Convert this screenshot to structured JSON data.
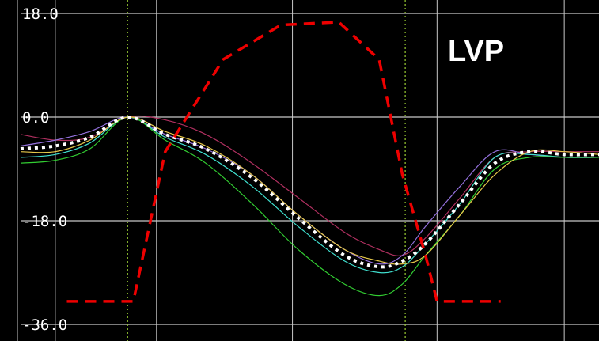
{
  "chart_data": {
    "type": "line",
    "annotation_label": "LVP",
    "y_tick_labels": [
      "18.0",
      "0.0",
      "-18.0",
      "-36.0"
    ],
    "y_ticks": [
      18,
      0,
      -18,
      -36
    ],
    "ylim": [
      -36,
      18
    ],
    "xlim": [
      0,
      1
    ],
    "grid": true,
    "event_markers_x": [
      0.185,
      0.665
    ],
    "colors": {
      "background": "#000000",
      "grid": "#c8c8c8",
      "marker_line": "#9acd32",
      "mean_trace": "#ffffff",
      "lvp_trace": "#ee0000",
      "axis_text": "#ffffff"
    },
    "series": [
      {
        "color": "#b03060",
        "style": "thin",
        "x": [
          0,
          0.06,
          0.12,
          0.185,
          0.25,
          0.32,
          0.4,
          0.48,
          0.56,
          0.62,
          0.66,
          0.7,
          0.76,
          0.82,
          0.88,
          0.94,
          1
        ],
        "y": [
          -3,
          -4,
          -3.5,
          0,
          -0.5,
          -3,
          -8,
          -14,
          -20,
          -23,
          -24,
          -21,
          -14,
          -7,
          -6,
          -6,
          -6
        ]
      },
      {
        "color": "#9370db",
        "style": "thin",
        "x": [
          0,
          0.06,
          0.12,
          0.185,
          0.25,
          0.32,
          0.4,
          0.48,
          0.56,
          0.62,
          0.66,
          0.7,
          0.76,
          0.82,
          0.88,
          0.94,
          1
        ],
        "y": [
          -5,
          -4,
          -2.5,
          0,
          -3,
          -5.5,
          -10,
          -17,
          -23,
          -25.5,
          -24,
          -19,
          -12,
          -6,
          -6.5,
          -7,
          -7
        ]
      },
      {
        "color": "#40e0d0",
        "style": "thin",
        "x": [
          0,
          0.06,
          0.12,
          0.185,
          0.25,
          0.32,
          0.4,
          0.48,
          0.56,
          0.62,
          0.66,
          0.7,
          0.76,
          0.82,
          0.88,
          0.94,
          1
        ],
        "y": [
          -7,
          -6.5,
          -4.5,
          0,
          -3.5,
          -6.5,
          -12,
          -19,
          -25,
          -27,
          -26,
          -22,
          -15,
          -7,
          -6.5,
          -7,
          -7
        ]
      },
      {
        "color": "#32cd32",
        "style": "thin",
        "x": [
          0,
          0.06,
          0.12,
          0.185,
          0.25,
          0.32,
          0.4,
          0.48,
          0.56,
          0.62,
          0.66,
          0.7,
          0.76,
          0.82,
          0.88,
          0.94,
          1
        ],
        "y": [
          -8,
          -7.5,
          -5.5,
          0,
          -4,
          -8,
          -15,
          -23,
          -29,
          -31,
          -29,
          -24,
          -17,
          -9,
          -7,
          -7,
          -7
        ]
      },
      {
        "color": "#e6c84a",
        "style": "thin",
        "x": [
          0,
          0.06,
          0.12,
          0.185,
          0.25,
          0.32,
          0.4,
          0.48,
          0.56,
          0.62,
          0.66,
          0.7,
          0.76,
          0.82,
          0.88,
          0.94,
          1
        ],
        "y": [
          -6,
          -6,
          -4,
          0,
          -2.5,
          -5,
          -10,
          -17,
          -23,
          -25,
          -25.5,
          -24,
          -17,
          -10,
          -6,
          -6,
          -6.5
        ]
      },
      {
        "color": "#ffffff",
        "style": "mean",
        "x": [
          0,
          0.06,
          0.12,
          0.185,
          0.25,
          0.32,
          0.4,
          0.48,
          0.56,
          0.62,
          0.66,
          0.7,
          0.76,
          0.82,
          0.88,
          0.94,
          1
        ],
        "y": [
          -5.5,
          -5,
          -3.5,
          0,
          -3,
          -5.5,
          -10.5,
          -17.5,
          -24,
          -26,
          -25,
          -22,
          -15,
          -8,
          -6,
          -6.5,
          -6.5
        ]
      },
      {
        "color": "#ee0000",
        "style": "dashed-lvp",
        "x": [
          0.08,
          0.195,
          0.25,
          0.35,
          0.45,
          0.55,
          0.62,
          0.66,
          0.7,
          0.72,
          0.78,
          0.83
        ],
        "y": [
          -32,
          -32,
          -6,
          10,
          16,
          16.5,
          10,
          -10,
          -24,
          -32,
          -32,
          -32
        ]
      }
    ]
  }
}
